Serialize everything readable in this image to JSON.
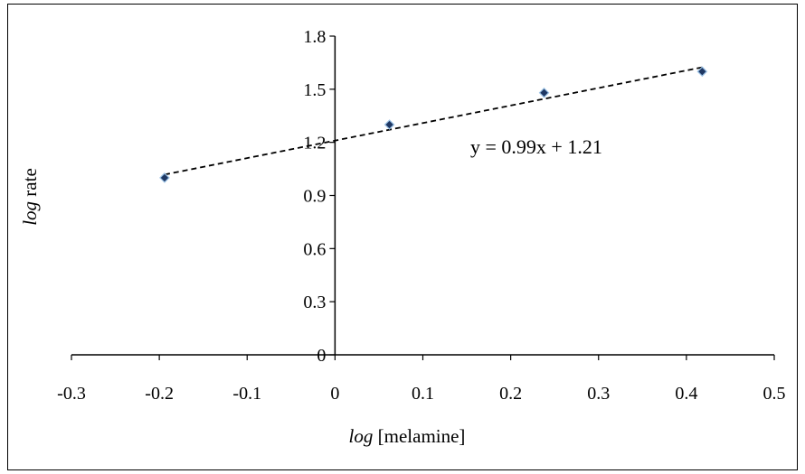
{
  "chart_data": {
    "type": "scatter",
    "x": [
      -0.194,
      0.062,
      0.238,
      0.418
    ],
    "y": [
      1.0,
      1.3,
      1.48,
      1.6
    ],
    "xlim": [
      -0.3,
      0.5
    ],
    "ylim": [
      0,
      1.8
    ],
    "xticks": [
      "-0.3",
      "-0.2",
      "-0.1",
      "0",
      "0.1",
      "0.2",
      "0.3",
      "0.4",
      "0.5"
    ],
    "yticks": [
      "0",
      "0.3",
      "0.6",
      "0.9",
      "1.2",
      "1.5",
      "1.8"
    ],
    "xlabel_italic": "log",
    "xlabel_rest": " [melamine]",
    "ylabel_italic": "log",
    "ylabel_rest": " rate",
    "trendline": {
      "slope": 0.99,
      "intercept": 1.21,
      "x_range": [
        -0.194,
        0.418
      ],
      "style": "dashed"
    },
    "equation": "y = 0.99x + 1.21",
    "grid": false,
    "legend": "none",
    "marker_color": "#1f3864",
    "marker_edge": "#9dc3e6"
  }
}
